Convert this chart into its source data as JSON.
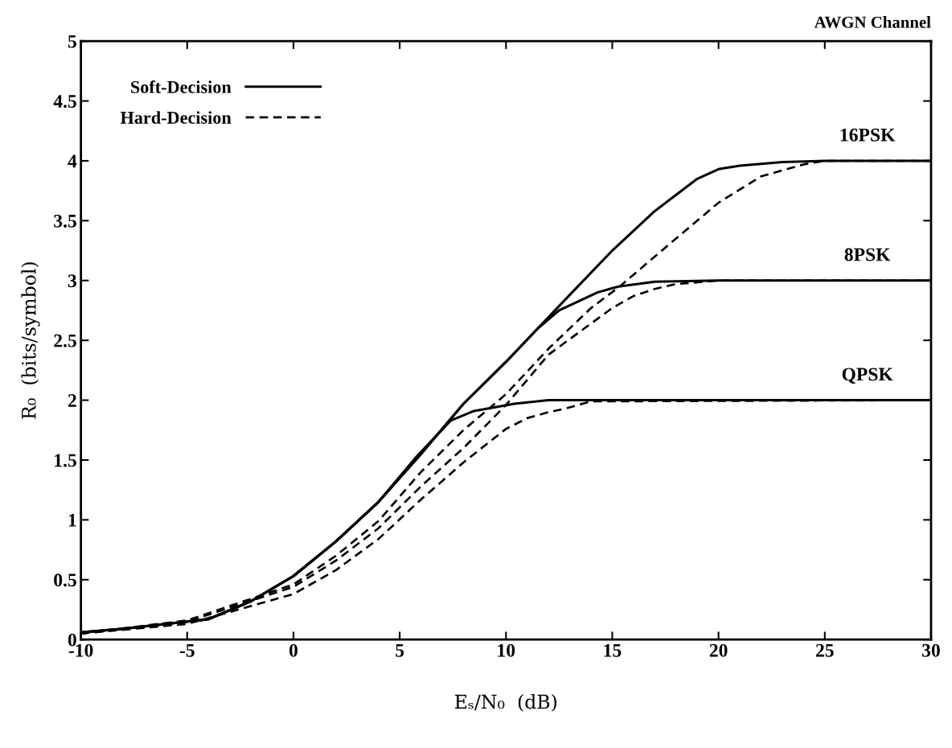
{
  "chart_data": {
    "type": "line",
    "title": "AWGN Channel",
    "xlabel": "Eₛ/N₀  (dB)",
    "ylabel": "R₀  (bits/symbol)",
    "xlim": [
      -10,
      30
    ],
    "ylim": [
      0,
      5
    ],
    "xticks": [
      -10,
      -5,
      0,
      5,
      10,
      15,
      20,
      25,
      30
    ],
    "yticks": [
      0,
      0.5,
      1,
      1.5,
      2,
      2.5,
      3,
      3.5,
      4,
      4.5,
      5
    ],
    "grid": false,
    "legend": "top left",
    "marker": "none",
    "series": [
      {
        "name": "Soft-Decision",
        "color": "#000000",
        "line_style": "solid",
        "x": [
          -10,
          -8,
          -6,
          -4,
          -2,
          0,
          2,
          4,
          6,
          8,
          10,
          11.5,
          13,
          15,
          17,
          19,
          20,
          21,
          23,
          25,
          30
        ],
        "values": [
          0.06,
          0.09,
          0.13,
          0.17,
          0.32,
          0.53,
          0.82,
          1.15,
          1.55,
          1.97,
          2.32,
          2.6,
          2.88,
          3.25,
          3.58,
          3.85,
          3.93,
          3.96,
          3.99,
          4.0,
          4.0
        ]
      },
      {
        "color": "#000000",
        "line_style": "solid",
        "x": [
          -10,
          -8,
          -6,
          -4,
          -2,
          0,
          2,
          4,
          6,
          8,
          10,
          11.5,
          12.5,
          14.3,
          15.3,
          17,
          20,
          30
        ],
        "values": [
          0.06,
          0.09,
          0.13,
          0.17,
          0.32,
          0.53,
          0.82,
          1.15,
          1.55,
          1.97,
          2.32,
          2.6,
          2.75,
          2.9,
          2.95,
          2.99,
          3.0,
          3.0
        ]
      },
      {
        "color": "#000000",
        "line_style": "solid",
        "x": [
          -10,
          -8,
          -6,
          -4,
          -2,
          0,
          2,
          4,
          5.8,
          7.4,
          8.5,
          10.4,
          12,
          30
        ],
        "values": [
          0.06,
          0.09,
          0.13,
          0.17,
          0.32,
          0.53,
          0.82,
          1.15,
          1.53,
          1.83,
          1.91,
          1.97,
          2.0,
          2.0
        ]
      },
      {
        "name": "Hard-Decision",
        "color": "#000000",
        "line_style": "dashed",
        "x": [
          -10,
          -5,
          0,
          2,
          4,
          6,
          8,
          10,
          12,
          14,
          15.35,
          17,
          19,
          20,
          22,
          24,
          25,
          30
        ],
        "values": [
          0.05,
          0.16,
          0.46,
          0.7,
          0.99,
          1.4,
          1.75,
          2.05,
          2.43,
          2.77,
          2.95,
          3.2,
          3.5,
          3.65,
          3.87,
          3.97,
          4.0,
          4.0
        ]
      },
      {
        "color": "#000000",
        "line_style": "dashed",
        "x": [
          -10,
          -5,
          0,
          2,
          4,
          6,
          8,
          10,
          12,
          15,
          16,
          17,
          18,
          20,
          30
        ],
        "values": [
          0.05,
          0.15,
          0.44,
          0.66,
          0.93,
          1.28,
          1.6,
          1.96,
          2.38,
          2.77,
          2.87,
          2.93,
          2.97,
          3.0,
          3.0
        ]
      },
      {
        "color": "#000000",
        "line_style": "dashed",
        "x": [
          -10,
          -5,
          0,
          2,
          4,
          6,
          8,
          10,
          11,
          12,
          12.8,
          14,
          30
        ],
        "values": [
          0.05,
          0.13,
          0.38,
          0.58,
          0.84,
          1.17,
          1.48,
          1.76,
          1.85,
          1.9,
          1.93,
          1.99,
          2.0
        ]
      }
    ],
    "annotations": [
      {
        "text": "16PSK",
        "y": 4.0
      },
      {
        "text": "8PSK",
        "y": 3.0
      },
      {
        "text": "QPSK",
        "y": 2.0
      }
    ]
  }
}
